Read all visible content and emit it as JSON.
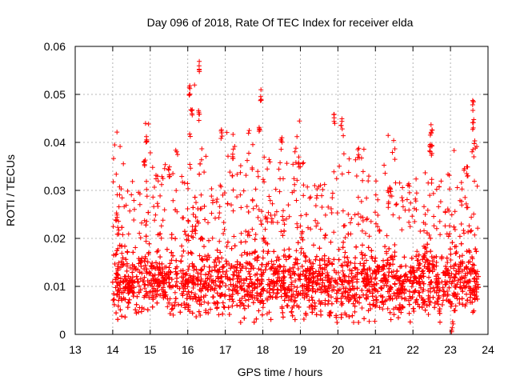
{
  "chart_data": {
    "type": "scatter",
    "title": "Day 096 of 2018, Rate Of TEC Index for receiver elda",
    "xlabel": "GPS time / hours",
    "ylabel": "ROTI / TECUs",
    "xlim": [
      13,
      24
    ],
    "ylim": [
      0,
      0.06
    ],
    "xticks": [
      "13",
      "14",
      "15",
      "16",
      "17",
      "18",
      "19",
      "20",
      "21",
      "22",
      "23",
      "24"
    ],
    "yticks": [
      "0",
      "0.01",
      "0.02",
      "0.03",
      "0.04",
      "0.05",
      "0.06"
    ],
    "grid": true,
    "marker": "+",
    "color": "#ff0000",
    "series": [
      {
        "name": "ROTI",
        "description": "Dense red '+' scatter between 14.0 and 23.7 h, mostly 0.004–0.02 TECU/s with episodic spikes",
        "x_range": [
          14.0,
          23.75
        ],
        "typical_y": [
          0.004,
          0.02
        ],
        "spikes": [
          {
            "x": 14.1,
            "y": 0.026
          },
          {
            "x": 14.9,
            "y": 0.042
          },
          {
            "x": 14.85,
            "y": 0.037
          },
          {
            "x": 15.5,
            "y": 0.035
          },
          {
            "x": 16.05,
            "y": 0.052
          },
          {
            "x": 16.1,
            "y": 0.048
          },
          {
            "x": 16.3,
            "y": 0.057
          },
          {
            "x": 16.3,
            "y": 0.047
          },
          {
            "x": 16.9,
            "y": 0.043
          },
          {
            "x": 17.2,
            "y": 0.039
          },
          {
            "x": 17.95,
            "y": 0.051
          },
          {
            "x": 17.9,
            "y": 0.044
          },
          {
            "x": 18.5,
            "y": 0.041
          },
          {
            "x": 18.95,
            "y": 0.037
          },
          {
            "x": 19.9,
            "y": 0.046
          },
          {
            "x": 20.1,
            "y": 0.045
          },
          {
            "x": 20.55,
            "y": 0.039
          },
          {
            "x": 21.4,
            "y": 0.031
          },
          {
            "x": 22.5,
            "y": 0.044
          },
          {
            "x": 22.45,
            "y": 0.04
          },
          {
            "x": 23.45,
            "y": 0.035
          },
          {
            "x": 23.6,
            "y": 0.049
          },
          {
            "x": 23.6,
            "y": 0.045
          },
          {
            "x": 23.05,
            "y": 0.003
          }
        ]
      }
    ]
  }
}
